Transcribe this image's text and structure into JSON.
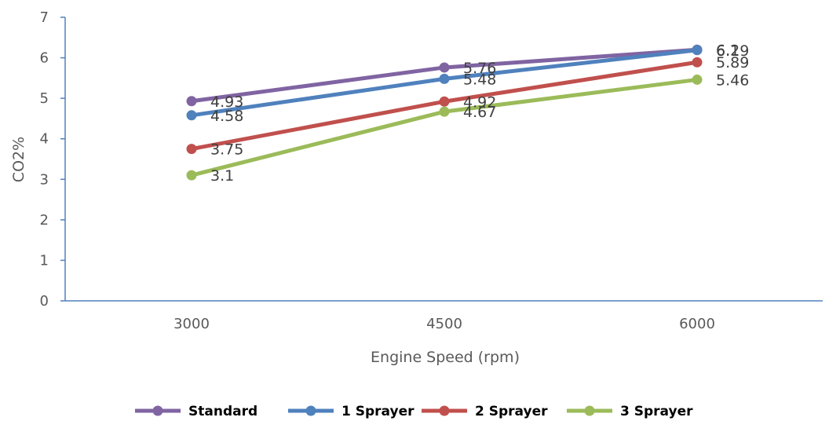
{
  "chart_data": {
    "type": "line",
    "title": "",
    "xlabel": "Engine Speed (rpm)",
    "ylabel": "CO2%",
    "categories": [
      "3000",
      "4500",
      "6000"
    ],
    "ylim": [
      0,
      7
    ],
    "yticks": [
      "0",
      "1",
      "2",
      "3",
      "4",
      "5",
      "6",
      "7"
    ],
    "grid": false,
    "legend_position": "bottom",
    "series": [
      {
        "name": "Standard",
        "color": "#8064A2",
        "values": [
          4.93,
          5.76,
          6.2
        ]
      },
      {
        "name": "1 Sprayer",
        "color": "#4F81BD",
        "values": [
          4.58,
          5.48,
          6.19
        ]
      },
      {
        "name": "2 Sprayer",
        "color": "#C0504D",
        "values": [
          3.75,
          4.92,
          5.89
        ]
      },
      {
        "name": "3 Sprayer",
        "color": "#9BBB59",
        "values": [
          3.1,
          4.67,
          5.46
        ]
      }
    ]
  }
}
